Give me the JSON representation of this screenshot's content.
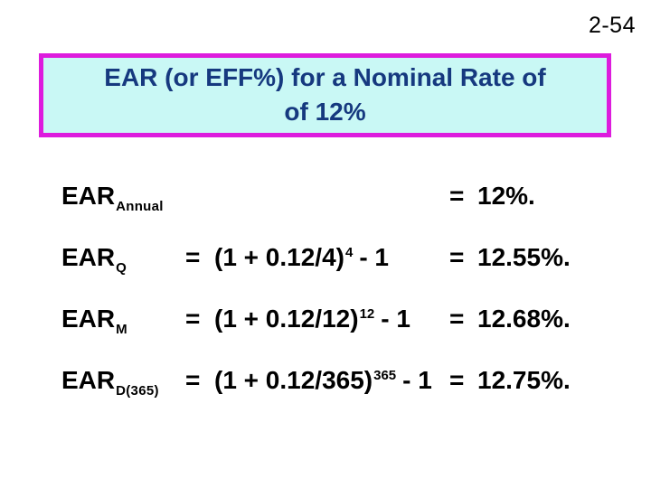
{
  "slide_number": "2-54",
  "title": {
    "line1": "EAR (or EFF%) for a Nominal Rate of",
    "line2": "of 12%"
  },
  "colors": {
    "title-bg": "#c9f8f5",
    "title-border": "#dd1cdd",
    "title-text": "#16397f",
    "body-text": "#000000",
    "page-bg": "#ffffff"
  },
  "rows": [
    {
      "label_base": "EAR",
      "label_sub": "Annual",
      "eq1": "",
      "formula_body": "",
      "formula_exp": "",
      "formula_tail": "",
      "eq2": "=",
      "result": "12%."
    },
    {
      "label_base": "EAR",
      "label_sub": "Q",
      "eq1": "=",
      "formula_body": "(1 + 0.12/4)",
      "formula_exp": "4",
      "formula_tail": "- 1",
      "eq2": "=",
      "result": "12.55%."
    },
    {
      "label_base": "EAR",
      "label_sub": "M",
      "eq1": "=",
      "formula_body": "(1 + 0.12/12)",
      "formula_exp": "12",
      "formula_tail": "- 1",
      "eq2": "=",
      "result": "12.68%."
    },
    {
      "label_base": "EAR",
      "label_sub": "D(365)",
      "eq1": "=",
      "formula_body": "(1 + 0.12/365)",
      "formula_exp": "365",
      "formula_tail": "- 1",
      "eq2": "=",
      "result": "12.75%."
    }
  ]
}
